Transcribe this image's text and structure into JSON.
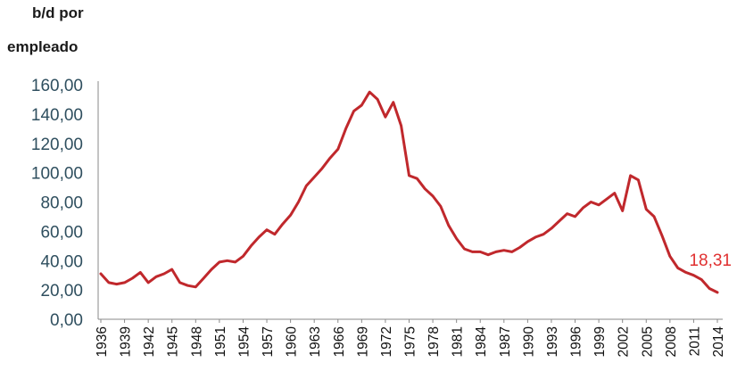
{
  "chart_data": {
    "type": "line",
    "ylabel_lines": [
      "b/d por",
      "empleado"
    ],
    "xlabel": "",
    "ylim": [
      0,
      160
    ],
    "yticks": [
      "160,00",
      "140,00",
      "120,00",
      "100,00",
      "80,00",
      "60,00",
      "40,00",
      "20,00",
      "0,00"
    ],
    "ytick_values": [
      160,
      140,
      120,
      100,
      80,
      60,
      40,
      20,
      0
    ],
    "xticks": [
      "1936",
      "1939",
      "1942",
      "1945",
      "1948",
      "1951",
      "1954",
      "1957",
      "1960",
      "1963",
      "1966",
      "1969",
      "1972",
      "1975",
      "1978",
      "1981",
      "1984",
      "1987",
      "1990",
      "1993",
      "1996",
      "1999",
      "2002",
      "2005",
      "2008",
      "2011",
      "2014"
    ],
    "grid": false,
    "line_color": "#c0282c",
    "annotation": {
      "text": "18,31",
      "x": 2014,
      "color": "#e03030"
    },
    "series": [
      {
        "x": [
          1936,
          1937,
          1938,
          1939,
          1940,
          1941,
          1942,
          1943,
          1944,
          1945,
          1946,
          1947,
          1948,
          1949,
          1950,
          1951,
          1952,
          1953,
          1954,
          1955,
          1956,
          1957,
          1958,
          1959,
          1960,
          1961,
          1962,
          1963,
          1964,
          1965,
          1966,
          1967,
          1968,
          1969,
          1970,
          1971,
          1972,
          1973,
          1974,
          1975,
          1976,
          1977,
          1978,
          1979,
          1980,
          1981,
          1982,
          1983,
          1984,
          1985,
          1986,
          1987,
          1988,
          1989,
          1990,
          1991,
          1992,
          1993,
          1994,
          1995,
          1996,
          1997,
          1998,
          1999,
          2000,
          2001,
          2002,
          2003,
          2004,
          2005,
          2006,
          2007,
          2008,
          2009,
          2010,
          2011,
          2012,
          2013,
          2014
        ],
        "values": [
          31,
          25,
          24,
          25,
          28,
          32,
          25,
          29,
          31,
          34,
          25,
          23,
          22,
          28,
          34,
          39,
          40,
          39,
          43,
          50,
          56,
          61,
          58,
          65,
          71,
          80,
          91,
          97,
          103,
          110,
          116,
          130,
          142,
          146,
          155,
          150,
          138,
          148,
          132,
          98,
          96,
          89,
          84,
          77,
          64,
          55,
          48,
          46,
          46,
          44,
          46,
          47,
          46,
          49,
          53,
          56,
          58,
          62,
          67,
          72,
          70,
          76,
          80,
          78,
          82,
          86,
          74,
          98,
          95,
          75,
          70,
          57,
          43,
          35,
          32,
          30,
          27,
          21,
          18.31
        ]
      }
    ]
  }
}
